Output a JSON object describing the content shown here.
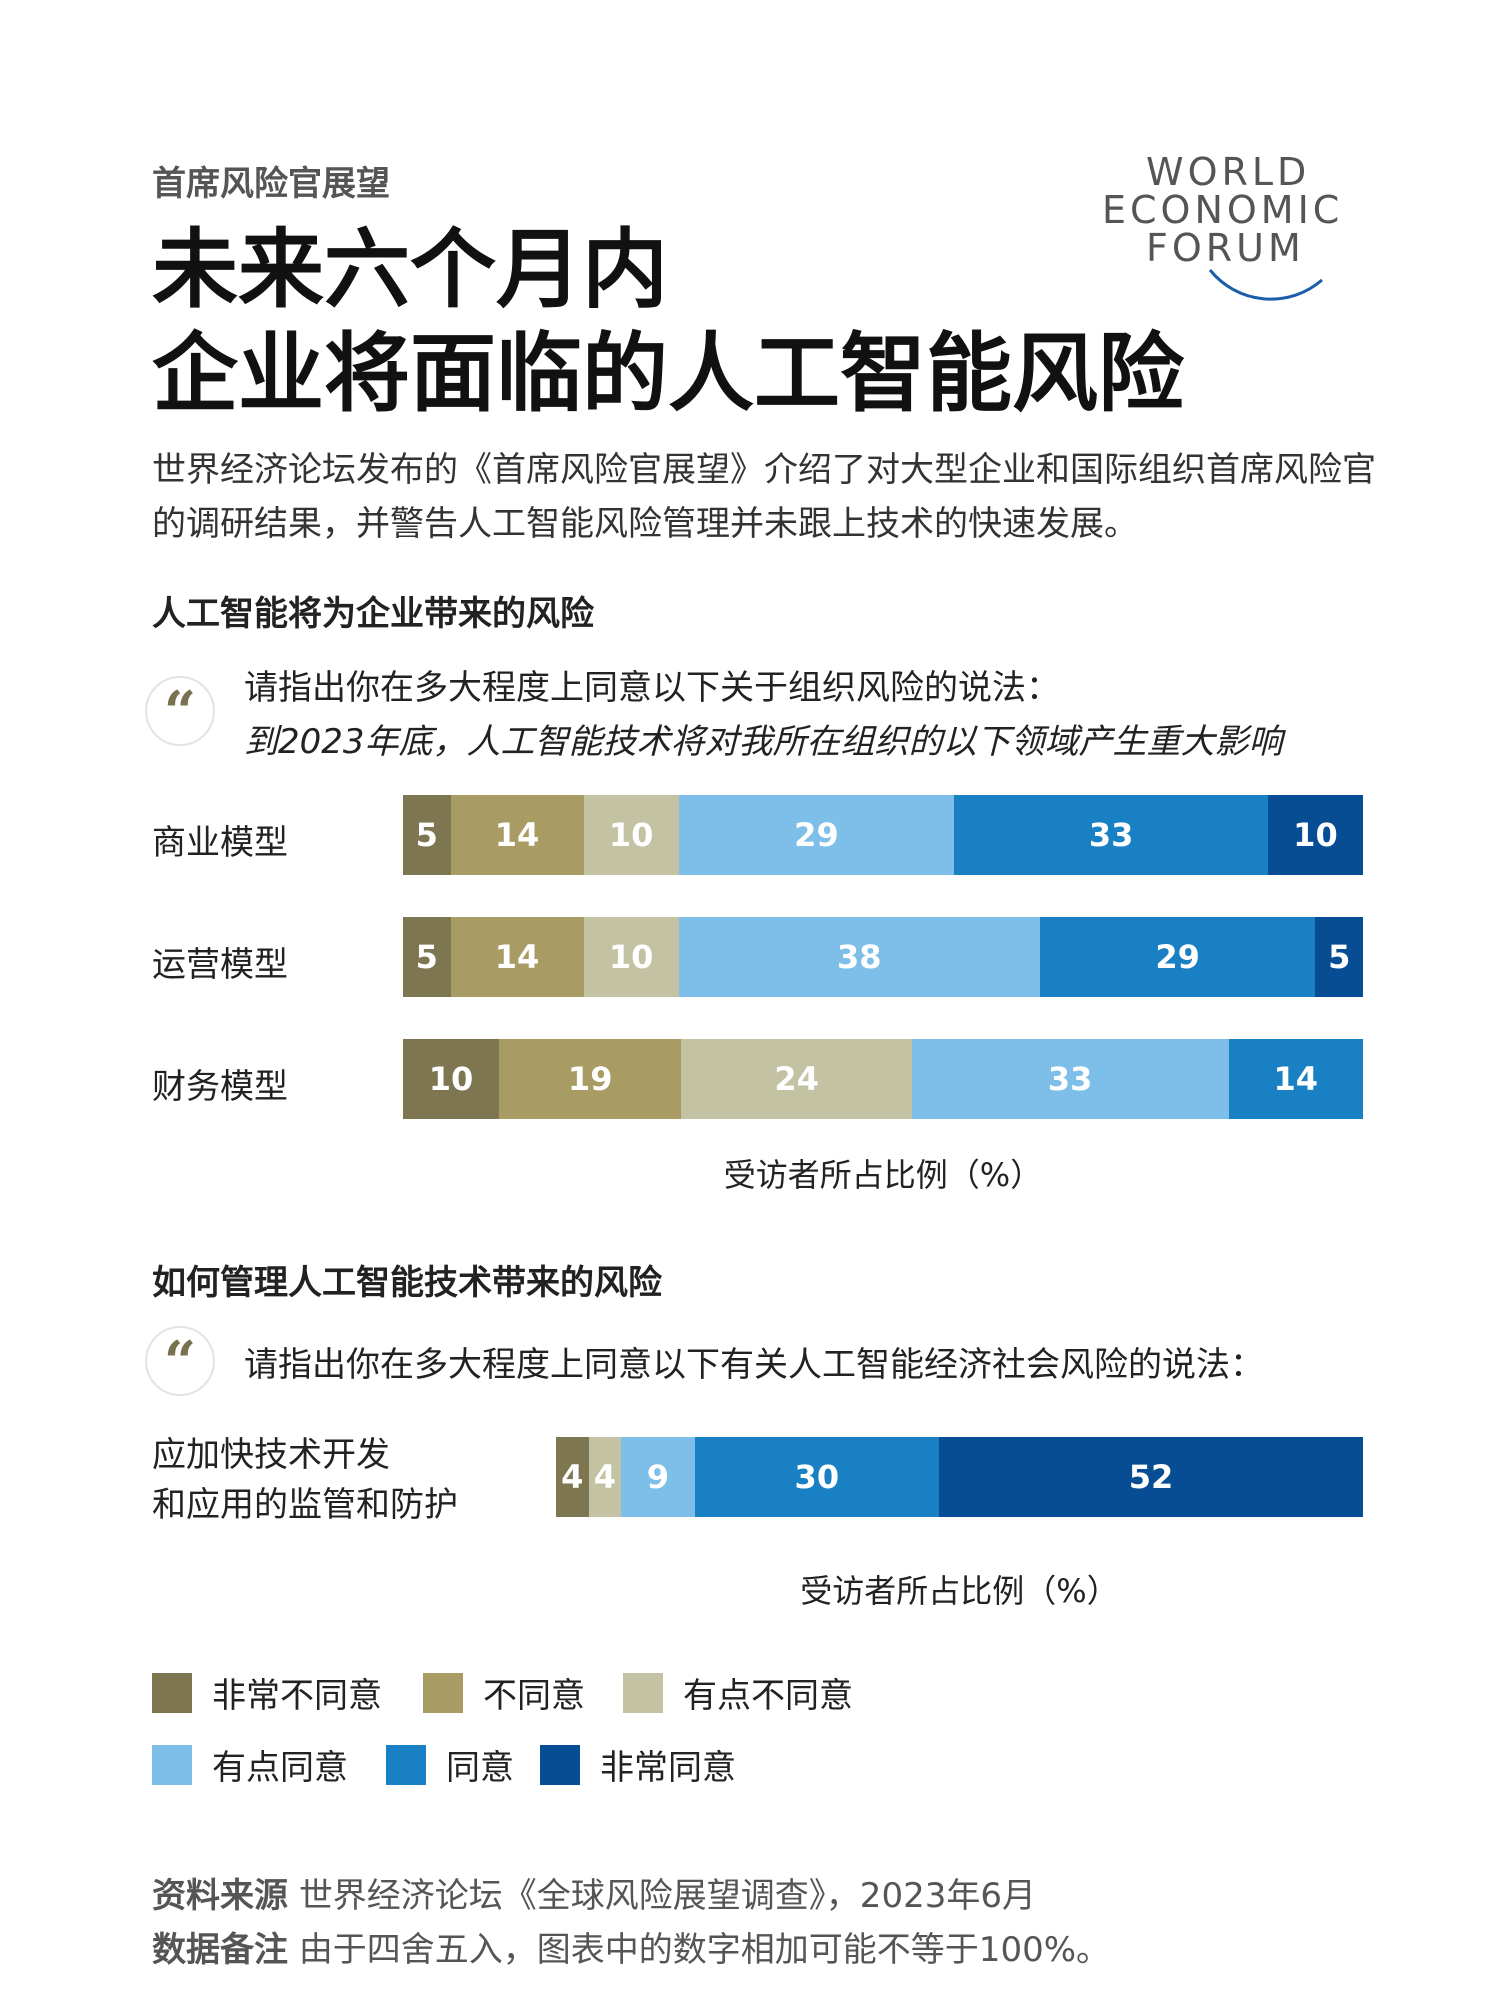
{
  "header": {
    "kicker": "首席风险官展望",
    "title_line1": "未来六个月内",
    "title_line2": "企业将面临的人工智能风险",
    "logo_line1": "WORLD",
    "logo_line2": "ECONOMIC",
    "logo_line3": "FORUM"
  },
  "intro": "世界经济论坛发布的《首席风险官展望》介绍了对大型企业和国际组织首席风险官的调研结果，并警告人工智能风险管理并未跟上技术的快速发展。",
  "section1": {
    "title": "人工智能将为企业带来的风险",
    "prompt_line1": "请指出你在多大程度上同意以下关于组织风险的说法：",
    "prompt_line2": "到2023年底，人工智能技术将对我所在组织的以下领域产生重大影响",
    "axis_label": "受访者所占比例（%）"
  },
  "section2": {
    "title": "如何管理人工智能技术带来的风险",
    "prompt_line1": "请指出你在多大程度上同意以下有关人工智能经济社会风险的说法：",
    "row_label_line1": "应加快技术开发",
    "row_label_line2": "和应用的监管和防护",
    "axis_label": "受访者所占比例（%）"
  },
  "quote_glyph": "“",
  "colors": {
    "strongly_disagree": "#7d7651",
    "disagree": "#a89c64",
    "somewhat_disagree": "#c3c2a2",
    "somewhat_agree": "#7dbfe8",
    "agree": "#1a80c4",
    "strongly_agree": "#064d94"
  },
  "legend": [
    {
      "label": "非常不同意",
      "color": "#7d7651"
    },
    {
      "label": "不同意",
      "color": "#a89c64"
    },
    {
      "label": "有点不同意",
      "color": "#c3c2a2"
    },
    {
      "label": "有点同意",
      "color": "#7dbfe8"
    },
    {
      "label": "同意",
      "color": "#1a80c4"
    },
    {
      "label": "非常同意",
      "color": "#064d94"
    }
  ],
  "chart_data": [
    {
      "type": "bar",
      "orientation": "horizontal",
      "stacked": true,
      "title": "人工智能将为企业带来的风险",
      "xlabel": "受访者所占比例（%）",
      "categories": [
        "商业模型",
        "运营模型",
        "财务模型"
      ],
      "series": [
        {
          "name": "非常不同意",
          "values": [
            5,
            5,
            10
          ]
        },
        {
          "name": "不同意",
          "values": [
            14,
            14,
            19
          ]
        },
        {
          "name": "有点不同意",
          "values": [
            10,
            10,
            24
          ]
        },
        {
          "name": "有点同意",
          "values": [
            29,
            38,
            33
          ]
        },
        {
          "name": "同意",
          "values": [
            33,
            29,
            14
          ]
        },
        {
          "name": "非常同意",
          "values": [
            10,
            5,
            0
          ]
        }
      ]
    },
    {
      "type": "bar",
      "orientation": "horizontal",
      "stacked": true,
      "title": "如何管理人工智能技术带来的风险",
      "xlabel": "受访者所占比例（%）",
      "categories": [
        "应加快技术开发和应用的监管和防护"
      ],
      "series": [
        {
          "name": "非常不同意",
          "values": [
            4
          ]
        },
        {
          "name": "不同意",
          "values": [
            0
          ]
        },
        {
          "name": "有点不同意",
          "values": [
            4
          ]
        },
        {
          "name": "有点同意",
          "values": [
            9
          ]
        },
        {
          "name": "同意",
          "values": [
            30
          ]
        },
        {
          "name": "非常同意",
          "values": [
            52
          ]
        }
      ]
    }
  ],
  "footer": {
    "source_label": "资料来源",
    "source_text": "世界经济论坛《全球风险展望调查》，2023年6月",
    "note_label": "数据备注",
    "note_text": "由于四舍五入，图表中的数字相加可能不等于100%。"
  }
}
